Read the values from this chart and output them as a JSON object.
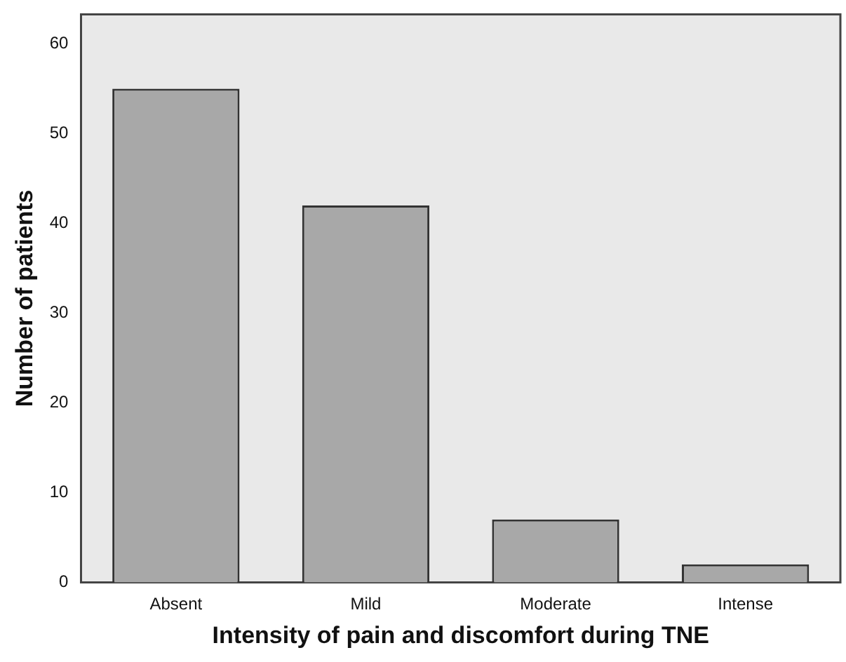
{
  "chart_data": {
    "type": "bar",
    "xlabel": "Intensity of pain and discomfort during TNE",
    "ylabel": "Number of patients",
    "categories": [
      "Absent",
      "Mild",
      "Moderate",
      "Intense"
    ],
    "values": [
      55,
      42,
      7,
      2
    ],
    "color": "#a8a8a8",
    "ylim": [
      0,
      63.3
    ],
    "yticks": [
      0,
      10,
      20,
      30,
      40,
      50,
      60
    ],
    "grid": false,
    "legend": false
  }
}
